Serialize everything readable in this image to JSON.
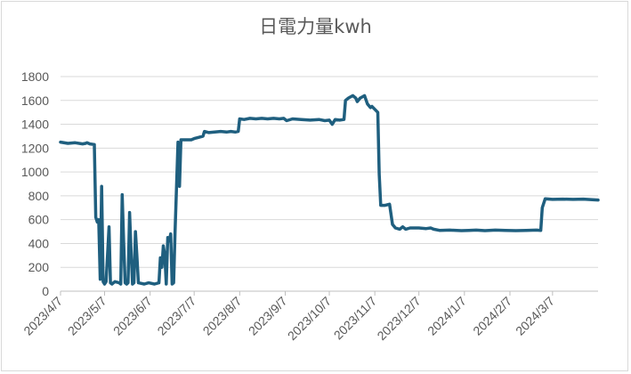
{
  "chart_data": {
    "type": "line",
    "title": "日電力量kwh",
    "xlabel": "",
    "ylabel": "",
    "ylim": [
      0,
      1800
    ],
    "yticks": [
      0,
      200,
      400,
      600,
      800,
      1000,
      1200,
      1400,
      1600,
      1800
    ],
    "xlim": [
      "2023-04-07",
      "2024-04-07"
    ],
    "xtick_labels": [
      "2023/4/7",
      "2023/5/7",
      "2023/6/7",
      "2023/7/7",
      "2023/8/7",
      "2023/9/7",
      "2023/10/7",
      "2023/11/7",
      "2023/12/7",
      "2024/1/7",
      "2024/2/7",
      "2024/3/7"
    ],
    "xtick_dates": [
      "2023-04-07",
      "2023-05-07",
      "2023-06-07",
      "2023-07-07",
      "2023-08-07",
      "2023-09-07",
      "2023-10-07",
      "2023-11-07",
      "2023-12-07",
      "2024-01-07",
      "2024-02-07",
      "2024-03-07"
    ],
    "grid": "horizontal",
    "line_color": "#1f5f7f",
    "series": [
      {
        "name": "",
        "points": [
          [
            "2023-04-07",
            1250
          ],
          [
            "2023-04-12",
            1240
          ],
          [
            "2023-04-17",
            1245
          ],
          [
            "2023-04-22",
            1235
          ],
          [
            "2023-04-24",
            1240
          ],
          [
            "2023-04-25",
            1245
          ],
          [
            "2023-04-27",
            1235
          ],
          [
            "2023-04-30",
            1230
          ],
          [
            "2023-05-01",
            620
          ],
          [
            "2023-05-02",
            580
          ],
          [
            "2023-05-03",
            600
          ],
          [
            "2023-05-04",
            100
          ],
          [
            "2023-05-05",
            880
          ],
          [
            "2023-05-06",
            80
          ],
          [
            "2023-05-07",
            60
          ],
          [
            "2023-05-08",
            80
          ],
          [
            "2023-05-09",
            300
          ],
          [
            "2023-05-10",
            540
          ],
          [
            "2023-05-11",
            70
          ],
          [
            "2023-05-12",
            60
          ],
          [
            "2023-05-14",
            80
          ],
          [
            "2023-05-17",
            70
          ],
          [
            "2023-05-18",
            60
          ],
          [
            "2023-05-19",
            810
          ],
          [
            "2023-05-20",
            400
          ],
          [
            "2023-05-21",
            70
          ],
          [
            "2023-05-22",
            60
          ],
          [
            "2023-05-23",
            70
          ],
          [
            "2023-05-24",
            660
          ],
          [
            "2023-05-25",
            350
          ],
          [
            "2023-05-26",
            60
          ],
          [
            "2023-05-27",
            70
          ],
          [
            "2023-05-28",
            500
          ],
          [
            "2023-05-29",
            300
          ],
          [
            "2023-05-30",
            70
          ],
          [
            "2023-06-03",
            60
          ],
          [
            "2023-06-06",
            70
          ],
          [
            "2023-06-10",
            60
          ],
          [
            "2023-06-13",
            70
          ],
          [
            "2023-06-14",
            280
          ],
          [
            "2023-06-15",
            200
          ],
          [
            "2023-06-16",
            380
          ],
          [
            "2023-06-17",
            300
          ],
          [
            "2023-06-18",
            60
          ],
          [
            "2023-06-19",
            450
          ],
          [
            "2023-06-20",
            420
          ],
          [
            "2023-06-21",
            480
          ],
          [
            "2023-06-22",
            60
          ],
          [
            "2023-06-23",
            70
          ],
          [
            "2023-06-24",
            500
          ],
          [
            "2023-06-26",
            1250
          ],
          [
            "2023-06-27",
            880
          ],
          [
            "2023-06-28",
            1270
          ],
          [
            "2023-07-05",
            1270
          ],
          [
            "2023-07-07",
            1280
          ],
          [
            "2023-07-10",
            1290
          ],
          [
            "2023-07-13",
            1300
          ],
          [
            "2023-07-14",
            1340
          ],
          [
            "2023-07-17",
            1330
          ],
          [
            "2023-07-21",
            1335
          ],
          [
            "2023-07-25",
            1340
          ],
          [
            "2023-07-29",
            1335
          ],
          [
            "2023-08-01",
            1340
          ],
          [
            "2023-08-04",
            1335
          ],
          [
            "2023-08-06",
            1340
          ],
          [
            "2023-08-07",
            1445
          ],
          [
            "2023-08-10",
            1440
          ],
          [
            "2023-08-14",
            1450
          ],
          [
            "2023-08-18",
            1445
          ],
          [
            "2023-08-22",
            1450
          ],
          [
            "2023-08-26",
            1445
          ],
          [
            "2023-08-30",
            1450
          ],
          [
            "2023-09-03",
            1445
          ],
          [
            "2023-09-06",
            1450
          ],
          [
            "2023-09-08",
            1430
          ],
          [
            "2023-09-12",
            1445
          ],
          [
            "2023-09-18",
            1440
          ],
          [
            "2023-09-24",
            1435
          ],
          [
            "2023-09-30",
            1440
          ],
          [
            "2023-10-04",
            1430
          ],
          [
            "2023-10-07",
            1435
          ],
          [
            "2023-10-09",
            1400
          ],
          [
            "2023-10-11",
            1440
          ],
          [
            "2023-10-14",
            1435
          ],
          [
            "2023-10-17",
            1440
          ],
          [
            "2023-10-18",
            1600
          ],
          [
            "2023-10-20",
            1620
          ],
          [
            "2023-10-23",
            1640
          ],
          [
            "2023-10-25",
            1620
          ],
          [
            "2023-10-26",
            1590
          ],
          [
            "2023-10-28",
            1620
          ],
          [
            "2023-10-31",
            1640
          ],
          [
            "2023-11-02",
            1570
          ],
          [
            "2023-11-04",
            1540
          ],
          [
            "2023-11-05",
            1550
          ],
          [
            "2023-11-07",
            1525
          ],
          [
            "2023-11-09",
            1500
          ],
          [
            "2023-11-10",
            980
          ],
          [
            "2023-11-11",
            720
          ],
          [
            "2023-11-14",
            720
          ],
          [
            "2023-11-17",
            730
          ],
          [
            "2023-11-19",
            560
          ],
          [
            "2023-11-21",
            530
          ],
          [
            "2023-11-24",
            520
          ],
          [
            "2023-11-26",
            540
          ],
          [
            "2023-11-28",
            520
          ],
          [
            "2023-12-01",
            530
          ],
          [
            "2023-12-07",
            530
          ],
          [
            "2023-12-12",
            525
          ],
          [
            "2023-12-15",
            530
          ],
          [
            "2023-12-17",
            520
          ],
          [
            "2023-12-21",
            510
          ],
          [
            "2023-12-28",
            512
          ],
          [
            "2024-01-05",
            508
          ],
          [
            "2024-01-10",
            510
          ],
          [
            "2024-01-15",
            512
          ],
          [
            "2024-01-21",
            508
          ],
          [
            "2024-01-28",
            512
          ],
          [
            "2024-02-04",
            510
          ],
          [
            "2024-02-11",
            508
          ],
          [
            "2024-02-18",
            510
          ],
          [
            "2024-02-25",
            512
          ],
          [
            "2024-02-28",
            510
          ],
          [
            "2024-02-29",
            700
          ],
          [
            "2024-03-02",
            775
          ],
          [
            "2024-03-07",
            770
          ],
          [
            "2024-03-14",
            772
          ],
          [
            "2024-03-21",
            770
          ],
          [
            "2024-03-28",
            772
          ],
          [
            "2024-04-03",
            768
          ],
          [
            "2024-04-07",
            765
          ]
        ]
      }
    ]
  }
}
